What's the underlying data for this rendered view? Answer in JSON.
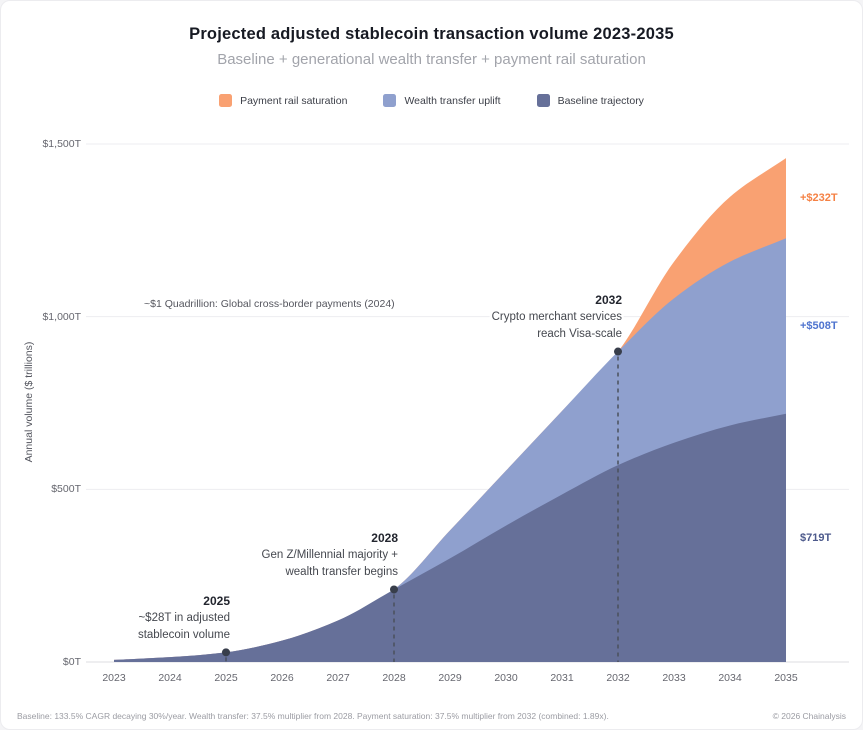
{
  "header": {
    "title": "Projected adjusted stablecoin transaction volume 2023-2035",
    "subtitle": "Baseline + generational wealth transfer + payment rail saturation"
  },
  "legend": [
    {
      "label": "Payment rail saturation",
      "color": "#f9a172"
    },
    {
      "label": "Wealth transfer uplift",
      "color": "#8fa0ce"
    },
    {
      "label": "Baseline trajectory",
      "color": "#667099"
    }
  ],
  "chart_data": {
    "type": "area",
    "stacked": true,
    "title": "Projected adjusted stablecoin transaction volume 2023-2035",
    "x": [
      2023,
      2024,
      2025,
      2026,
      2027,
      2028,
      2029,
      2030,
      2031,
      2032,
      2033,
      2034,
      2035
    ],
    "series": [
      {
        "name": "Baseline trajectory",
        "color": "#667099",
        "values": [
          6,
          14,
          28,
          62,
          120,
          210,
          300,
          395,
          485,
          570,
          635,
          685,
          719
        ]
      },
      {
        "name": "Wealth transfer uplift",
        "color": "#8fa0ce",
        "values": [
          0,
          0,
          0,
          0,
          0,
          0,
          81,
          159,
          242,
          329,
          418,
          474,
          508
        ]
      },
      {
        "name": "Payment rail saturation",
        "color": "#f9a172",
        "values": [
          0,
          0,
          0,
          0,
          0,
          0,
          0,
          0,
          0,
          0,
          106,
          188,
          232
        ]
      }
    ],
    "ylabel": "Annual volume ($ trillions)",
    "ylim": [
      0,
      1500
    ],
    "grid": true,
    "legend_position": "top",
    "y_ticks": [
      {
        "value": 0,
        "label": "$0T"
      },
      {
        "value": 500,
        "label": "$500T"
      },
      {
        "value": 1000,
        "label": "$1,000T"
      },
      {
        "value": 1500,
        "label": "$1,500T"
      }
    ],
    "milestones": [
      {
        "year": 2025,
        "title": "2025",
        "lines": [
          "~$28T in adjusted",
          "stablecoin volume"
        ]
      },
      {
        "year": 2028,
        "title": "2028",
        "lines": [
          "Gen Z/Millennial majority +",
          "wealth transfer begins"
        ]
      },
      {
        "year": 2032,
        "title": "2032",
        "lines": [
          "Crypto merchant services",
          "reach Visa-scale"
        ]
      }
    ],
    "reference_note": {
      "text": "~$1 Quadrillion: Global cross-border payments (2024)",
      "y_value": 1000
    },
    "segment_labels": [
      {
        "text": "+$232T",
        "color": "#f58144",
        "series": "Payment rail saturation"
      },
      {
        "text": "+$508T",
        "color": "#4f74cf",
        "series": "Wealth transfer uplift"
      },
      {
        "text": "$719T",
        "color": "#4d5a8c",
        "series": "Baseline trajectory"
      }
    ]
  },
  "footer": {
    "left": "Baseline: 133.5% CAGR decaying 30%/year. Wealth transfer: 37.5% multiplier from 2028. Payment saturation: 37.5% multiplier from 2032 (combined: 1.89x).",
    "right": "© 2026 Chainalysis"
  }
}
